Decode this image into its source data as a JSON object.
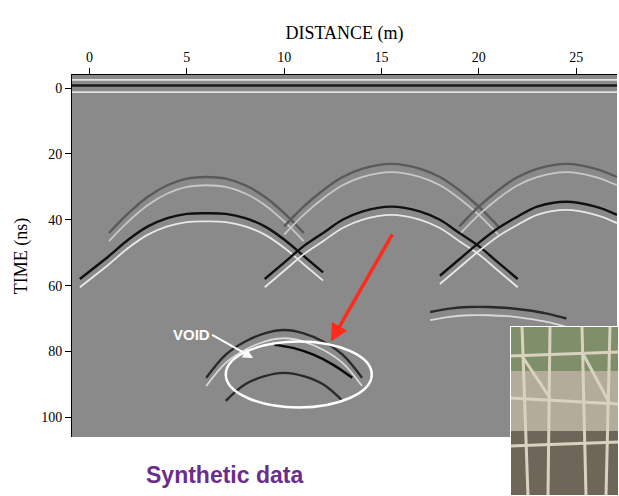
{
  "chart_data": {
    "type": "line",
    "xlabel": "DISTANCE (m)",
    "ylabel": "TIME (ns)",
    "caption": "Synthetic data",
    "xlim": [
      -0.9,
      27.1
    ],
    "ylim": [
      106,
      -4
    ],
    "xticks": [
      0,
      5,
      10,
      15,
      20,
      25
    ],
    "yticks": [
      0,
      20,
      40,
      60,
      80,
      100
    ],
    "grid": false,
    "series": [
      {
        "color": "#e2e2e2",
        "x": [
          -0.9,
          27.1
        ],
        "values": [
          -2.5,
          -2.5
        ]
      },
      {
        "color": "#1a1a1a",
        "x": [
          -0.9,
          27.1
        ],
        "values": [
          -0.8,
          -0.8
        ]
      },
      {
        "color": "#e2e2e2",
        "x": [
          -0.9,
          27.1
        ],
        "values": [
          1.2,
          1.2
        ]
      },
      {
        "color": "#5a5a5a",
        "x": [
          1,
          2,
          3,
          4,
          5,
          6,
          7,
          8,
          9,
          10,
          11
        ],
        "values": [
          44,
          38,
          33,
          29.5,
          27.5,
          27,
          27.5,
          29.5,
          33,
          38,
          44
        ]
      },
      {
        "color": "#c8c8c8",
        "x": [
          1,
          2,
          3,
          4,
          5,
          6,
          7,
          8,
          9,
          10,
          11
        ],
        "values": [
          46.5,
          40.5,
          35.5,
          32,
          30,
          29.5,
          30,
          32,
          35.5,
          40.5,
          46.5
        ]
      },
      {
        "color": "#5a5a5a",
        "x": [
          10,
          11,
          12,
          13,
          14,
          15.5,
          17,
          18,
          19,
          20,
          21
        ],
        "values": [
          42,
          36,
          31,
          27,
          24.5,
          23,
          24.5,
          27,
          31,
          36,
          42
        ]
      },
      {
        "color": "#c8c8c8",
        "x": [
          10,
          11,
          12,
          13,
          14,
          15.5,
          17,
          18,
          19,
          20,
          21
        ],
        "values": [
          44.5,
          38.5,
          33.5,
          29.5,
          27,
          25.5,
          27,
          29.5,
          33.5,
          38.5,
          44.5
        ]
      },
      {
        "color": "#5a5a5a",
        "x": [
          19,
          20,
          21,
          22,
          23,
          24.5,
          26,
          27.1
        ],
        "values": [
          42,
          36,
          31,
          27,
          24.5,
          23,
          24.5,
          27
        ]
      },
      {
        "color": "#c8c8c8",
        "x": [
          19,
          20,
          21,
          22,
          23,
          24.5,
          26,
          27.1
        ],
        "values": [
          44.5,
          38.5,
          33.5,
          29.5,
          27,
          25.5,
          27,
          29.5
        ]
      },
      {
        "color": "#111111",
        "x": [
          -0.5,
          1,
          2,
          3,
          4,
          5,
          6,
          7,
          8,
          9,
          10,
          11,
          12
        ],
        "values": [
          58,
          51,
          46,
          42,
          39.5,
          38.2,
          38,
          38.2,
          39.5,
          42,
          46,
          51,
          56
        ]
      },
      {
        "color": "#e8e8e8",
        "x": [
          -0.5,
          1,
          2,
          3,
          4,
          5,
          6,
          7,
          8,
          9,
          10,
          11,
          12
        ],
        "values": [
          60.5,
          53.5,
          48.5,
          44.5,
          42,
          40.7,
          40.5,
          40.7,
          42,
          44.5,
          48.5,
          53.5,
          58.5
        ]
      },
      {
        "color": "#111111",
        "x": [
          9,
          10,
          11,
          12,
          13,
          14,
          15.5,
          17,
          18,
          19,
          20,
          21,
          22
        ],
        "values": [
          58,
          53,
          48,
          44,
          40,
          37.5,
          36,
          37.5,
          40,
          44,
          48,
          53,
          58
        ]
      },
      {
        "color": "#e8e8e8",
        "x": [
          9,
          10,
          11,
          12,
          13,
          14,
          15.5,
          17,
          18,
          19,
          20,
          21,
          22
        ],
        "values": [
          60.5,
          55.5,
          50.5,
          46.5,
          42.5,
          40,
          38.5,
          40,
          42.5,
          46.5,
          50.5,
          55.5,
          60.5
        ]
      },
      {
        "color": "#111111",
        "x": [
          18,
          19,
          20,
          21,
          22,
          23,
          24.5,
          26,
          27.1
        ],
        "values": [
          57,
          52,
          47,
          42.5,
          39,
          36,
          34.5,
          36,
          38.5
        ]
      },
      {
        "color": "#e8e8e8",
        "x": [
          18,
          19,
          20,
          21,
          22,
          23,
          24.5,
          26,
          27.1
        ],
        "values": [
          59.5,
          54.5,
          49.5,
          45,
          41.5,
          38.5,
          37,
          38.5,
          41
        ]
      },
      {
        "color": "#2a2a2a",
        "x": [
          17.5,
          18.5,
          19.5,
          20.5,
          21.5,
          22.5,
          23.5,
          24.5
        ],
        "values": [
          68,
          67,
          66.5,
          66.5,
          66.8,
          67.5,
          68.5,
          70
        ]
      },
      {
        "color": "#d8d8d8",
        "x": [
          17.5,
          18.5,
          19.5,
          20.5,
          21.5,
          22.5,
          23.5,
          24.5
        ],
        "values": [
          70.5,
          69.5,
          69,
          69,
          69.3,
          70,
          71,
          72.5
        ]
      },
      {
        "color": "#2a2a2a",
        "x": [
          6,
          7,
          8,
          9,
          10,
          11,
          12,
          13,
          14
        ],
        "values": [
          88,
          81,
          77,
          74.5,
          73.5,
          74.5,
          77,
          81,
          88
        ]
      },
      {
        "color": "#d8d8d8",
        "x": [
          6,
          7,
          8,
          9,
          10,
          11,
          12,
          13,
          14
        ],
        "values": [
          90.5,
          83.5,
          79.5,
          77,
          76,
          77,
          79.5,
          83.5,
          90.5
        ]
      },
      {
        "color": "#0a0a0a",
        "x": [
          9.5,
          10.5,
          11.5,
          12.5,
          13.5
        ],
        "values": [
          78,
          79,
          81,
          84,
          88
        ]
      },
      {
        "color": "#2a2a2a",
        "x": [
          7,
          8,
          9,
          10,
          11,
          12,
          13
        ],
        "values": [
          95,
          90,
          87.5,
          86.5,
          87.5,
          90,
          95
        ]
      }
    ],
    "annotations": [
      {
        "text": "VOID",
        "x": 8.4,
        "y": 82,
        "text_x": 6.3,
        "text_y": 75,
        "color": "#ffffff"
      }
    ],
    "ellipse": {
      "x": [
        7,
        14.5
      ],
      "y": [
        77,
        97
      ],
      "color": "#ffffff"
    },
    "arrow": {
      "from_x": 15.6,
      "from_y": 44,
      "to_x": 12.4,
      "to_y": 77,
      "color": "#ff2a1a"
    }
  }
}
